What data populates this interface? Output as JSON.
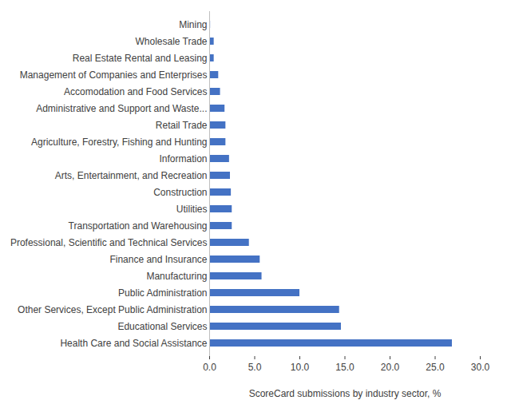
{
  "chart_data": {
    "type": "bar",
    "orientation": "horizontal",
    "color": "#4472c4",
    "x_label": "ScoreCard submissions by industry sector, %",
    "categories": [
      "Mining",
      "Wholesale Trade",
      "Real Estate Rental and Leasing",
      "Management of Companies and Enterprises",
      "Accomodation and Food Services",
      "Administrative and Support and Waste...",
      "Retail Trade",
      "Agriculture, Forestry, Fishing and Hunting",
      "Information",
      "Arts, Entertainment, and Recreation",
      "Construction",
      "Utilities",
      "Transportation and Warehousing",
      "Professional, Scientific and Technical Services",
      "Finance and Insurance",
      "Manufacturing",
      "Public Administration",
      "Other Services, Except Public Administration",
      "Educational Services",
      "Health Care and Social Assistance"
    ],
    "values": [
      0.1,
      0.5,
      0.5,
      1.0,
      1.2,
      1.7,
      1.8,
      1.8,
      2.2,
      2.3,
      2.4,
      2.5,
      2.5,
      4.4,
      5.6,
      5.8,
      10.0,
      14.4,
      14.6,
      26.9
    ],
    "xlim": [
      0,
      30
    ],
    "xticks": [
      {
        "value": 0,
        "label": "0.0"
      },
      {
        "value": 5,
        "label": "5.0"
      },
      {
        "value": 10,
        "label": "10.0"
      },
      {
        "value": 15,
        "label": "15.0"
      },
      {
        "value": 20,
        "label": "20.0"
      },
      {
        "value": 25,
        "label": "25.0"
      },
      {
        "value": 30,
        "label": "30.0"
      }
    ],
    "grid": false,
    "data_labels": false
  }
}
